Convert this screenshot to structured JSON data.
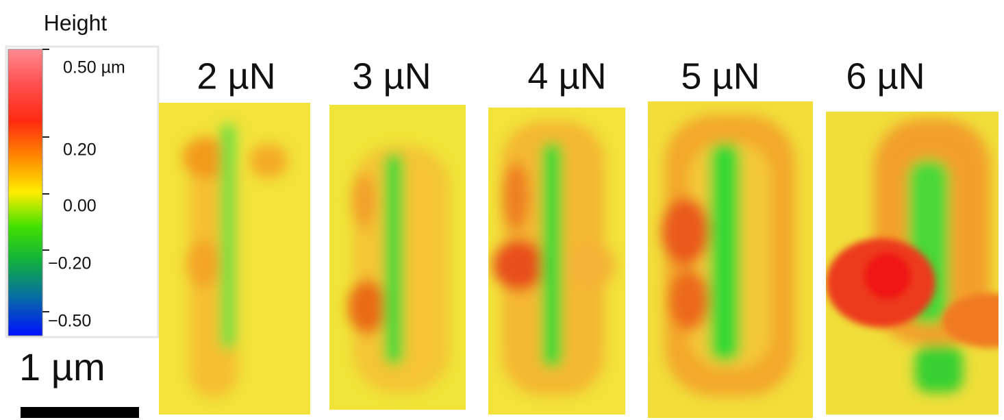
{
  "header": {
    "title": "Height"
  },
  "colorbar": {
    "ticks": [
      "0.50 µm",
      "0.20",
      "0.00",
      "−0.20",
      "−0.50"
    ]
  },
  "scale_bar": {
    "label": "1 µm"
  },
  "panels": [
    {
      "label": "2 µN"
    },
    {
      "label": "3 µN"
    },
    {
      "label": "4 µN"
    },
    {
      "label": "5 µN"
    },
    {
      "label": "6 µN"
    }
  ]
}
